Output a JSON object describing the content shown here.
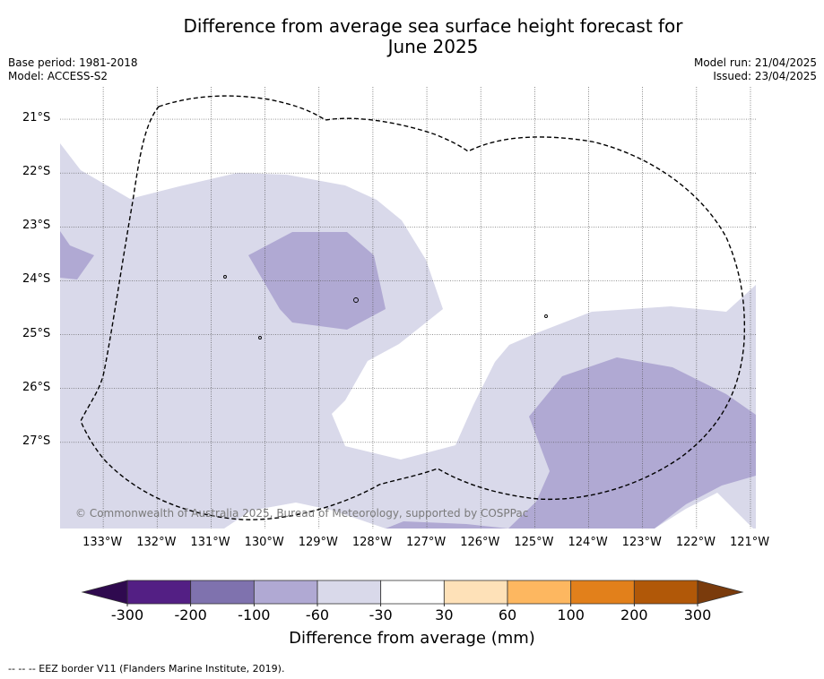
{
  "title_line1": "Difference from average sea surface height forecast for",
  "title_line2": "June 2025",
  "meta": {
    "base_period": "Base period: 1981-2018",
    "model": "Model: ACCESS-S2",
    "model_run": "Model run: 21/04/2025",
    "issued": "Issued: 23/04/2025"
  },
  "copyright": "© Commonwealth of Australia 2025, Bureau of Meteorology, supported by COSPPac",
  "legend_text": "-- -- -- EEZ border V11 (Flanders Marine Institute, 2019).",
  "map": {
    "lon_range": [
      -133.8,
      -120.9
    ],
    "lat_range": [
      -28.6,
      -20.4
    ],
    "lat_ticks": [
      {
        "value": -21,
        "label": "21°S"
      },
      {
        "value": -22,
        "label": "22°S"
      },
      {
        "value": -23,
        "label": "23°S"
      },
      {
        "value": -24,
        "label": "24°S"
      },
      {
        "value": -25,
        "label": "25°S"
      },
      {
        "value": -26,
        "label": "26°S"
      },
      {
        "value": -27,
        "label": "27°S"
      }
    ],
    "lon_ticks": [
      {
        "value": -133,
        "label": "133°W"
      },
      {
        "value": -132,
        "label": "132°W"
      },
      {
        "value": -131,
        "label": "131°W"
      },
      {
        "value": -130,
        "label": "130°W"
      },
      {
        "value": -129,
        "label": "129°W"
      },
      {
        "value": -128,
        "label": "128°W"
      },
      {
        "value": -127,
        "label": "127°W"
      },
      {
        "value": -126,
        "label": "126°W"
      },
      {
        "value": -125,
        "label": "125°W"
      },
      {
        "value": -124,
        "label": "124°W"
      },
      {
        "value": -123,
        "label": "123°W"
      },
      {
        "value": -122,
        "label": "122°W"
      },
      {
        "value": -121,
        "label": "121°W"
      }
    ],
    "fill_colors": {
      "light": "#d9d9ea",
      "mid": "#b0a9d3"
    }
  },
  "colorbar": {
    "title": "Difference from average (mm)",
    "ticks": [
      "-300",
      "-200",
      "-100",
      "-60",
      "-30",
      "30",
      "60",
      "100",
      "200",
      "300"
    ],
    "colors": [
      "#531f84",
      "#7f72ae",
      "#b0a9d3",
      "#d9d9ea",
      "#ffffff",
      "#fee1b8",
      "#fdb760",
      "#e2801b",
      "#b15808"
    ],
    "extend_low_color": "#2f0a4f",
    "extend_high_color": "#7a3b0c"
  }
}
